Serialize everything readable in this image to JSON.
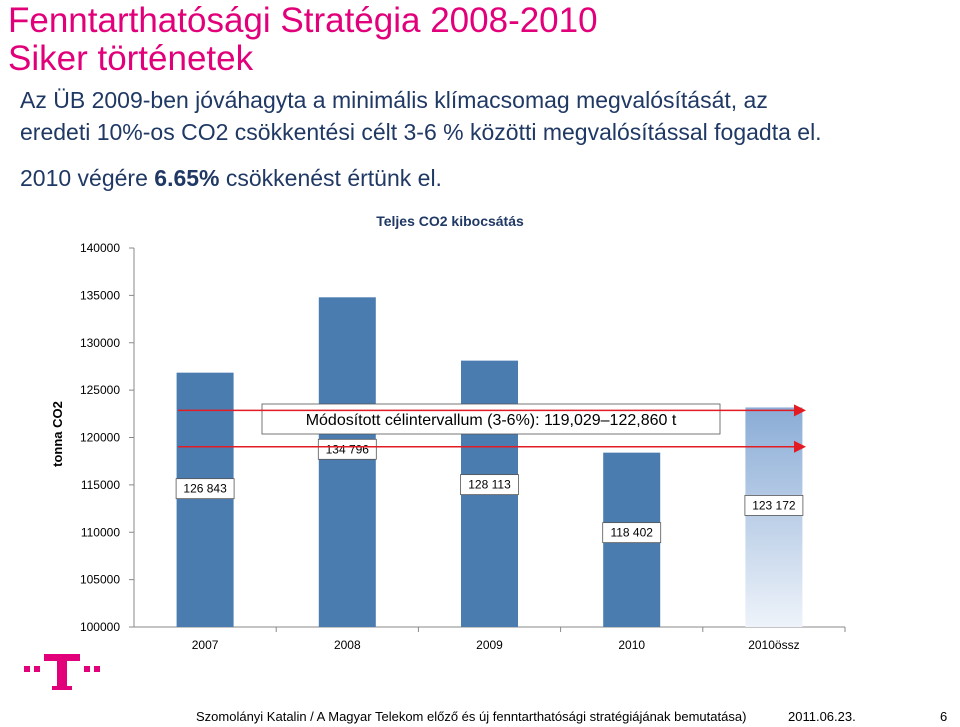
{
  "slide": {
    "title_line1": "Fenntarthatósági Stratégia 2008-2010",
    "title_line2": "Siker történetek",
    "intro_line1": "Az ÜB 2009-ben jóváhagyta a minimális klímacsomag megvalósítását, az",
    "intro_line2": "eredeti 10%-os CO2 csökkentési célt 3-6 % közötti megvalósítással fogadta el.",
    "result_prefix": "2010 végére ",
    "result_value": "6.65%",
    "result_suffix": " csökkenést értünk el."
  },
  "chart_data": {
    "type": "bar",
    "title": "Teljes CO2 kibocsátás",
    "ylabel": "tonna CO2",
    "xlabel": "",
    "categories": [
      "2007",
      "2008",
      "2009",
      "2010",
      "2010össz"
    ],
    "values": [
      126843,
      134796,
      128113,
      118402,
      123172
    ],
    "data_labels": [
      "126 843",
      "134 796",
      "128 113",
      "118 402",
      "123 172"
    ],
    "ylim": [
      100000,
      140000
    ],
    "yticks": [
      100000,
      105000,
      110000,
      115000,
      120000,
      125000,
      130000,
      135000,
      140000
    ],
    "grid": false,
    "annotation": "Módosított célintervallum  (3-6%): 119,029–122,860 t",
    "target_range": [
      119029,
      122860
    ],
    "colors": {
      "bar": "#4a7cb0",
      "bar_highlight_top": "#8aacd6",
      "bar_highlight_bottom": "#eef3fa",
      "arrow": "#e31b23",
      "axis": "#888888"
    }
  },
  "logo": {
    "icon": "telekom-t-logo",
    "color": "#e2007a"
  },
  "footer": {
    "text": "Szomolányi Katalin / A Magyar Telekom előző és új fenntarthatósági stratégiájának bemutatása)",
    "date": "2011.06.23.",
    "page": "6"
  }
}
